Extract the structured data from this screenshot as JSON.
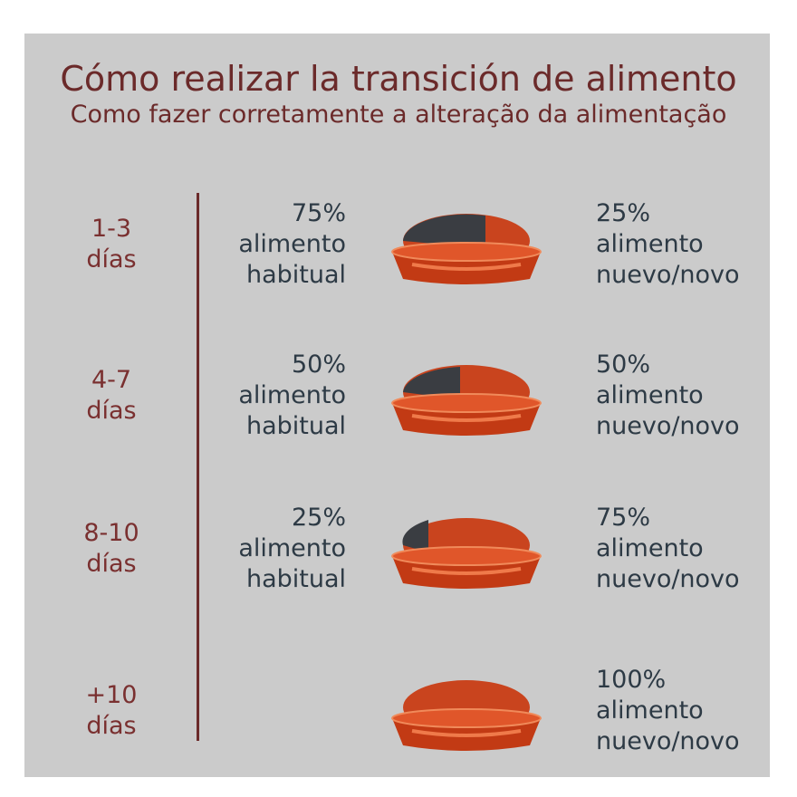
{
  "header": {
    "title": "Cómo realizar la transición de alimento",
    "subtitle": "Como fazer corretamente a alteração da alimentação"
  },
  "rows": [
    {
      "period": [
        "1-3",
        "días"
      ],
      "current": [
        "75%",
        "alimento",
        "habitual"
      ],
      "new": [
        "25%",
        "alimento",
        "nuevo/novo"
      ]
    },
    {
      "period": [
        "4-7",
        "días"
      ],
      "current": [
        "50%",
        "alimento",
        "habitual"
      ],
      "new": [
        "50%",
        "alimento",
        "nuevo/novo"
      ]
    },
    {
      "period": [
        "8-10",
        "días"
      ],
      "current": [
        "25%",
        "alimento",
        "habitual"
      ],
      "new": [
        "75%",
        "alimento",
        "nuevo/novo"
      ]
    },
    {
      "period": [
        "+10",
        "días"
      ],
      "new": [
        "100%",
        "alimento",
        "nuevo/novo"
      ]
    }
  ]
}
